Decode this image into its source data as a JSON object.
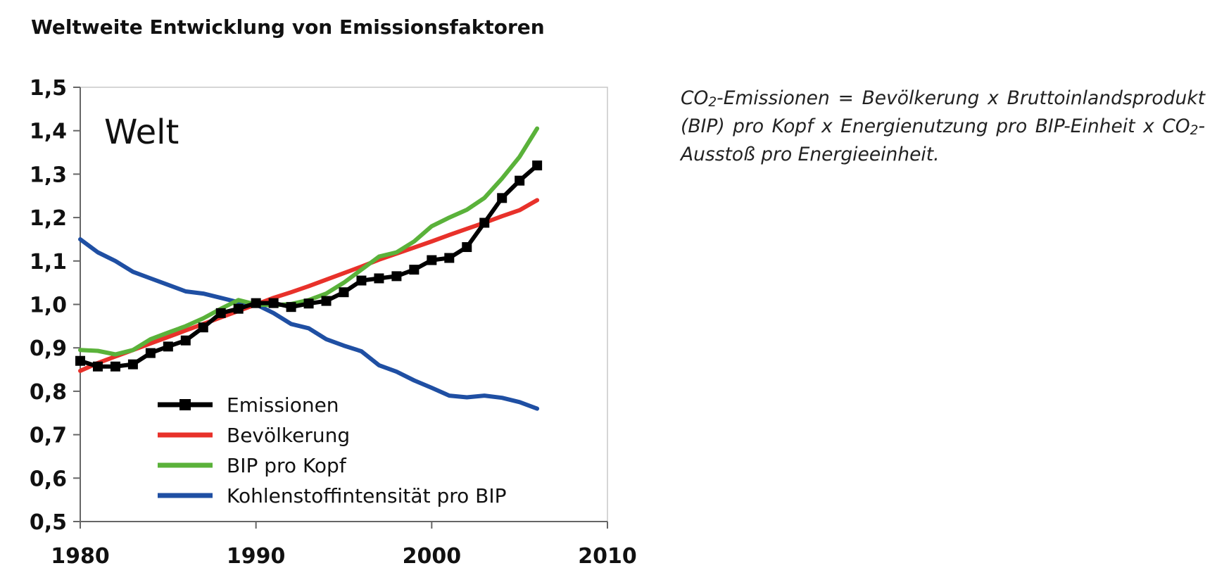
{
  "page": {
    "title": "Weltweite Entwicklung von Emissionsfaktoren"
  },
  "annotation": {
    "before_sub1": "CO",
    "sub1": "2",
    "after_sub1": "-Emissionen = Bevölkerung x Bruttoinlandsprodukt (BIP) pro Kopf x Energienutzung pro BIP-Einheit x CO",
    "sub2": "2",
    "after_sub2": "-Ausstoß pro Energieeinheit."
  },
  "chart_data": {
    "type": "line",
    "title": "Welt",
    "xlabel": "",
    "ylabel": "",
    "xlim": [
      1980,
      2010
    ],
    "ylim": [
      0.5,
      1.5
    ],
    "x_ticks": [
      "1980",
      "1990",
      "2000",
      "2010"
    ],
    "x_tick_values": [
      1980,
      1990,
      2000,
      2010
    ],
    "y_ticks": [
      "0,5",
      "0,6",
      "0,7",
      "0,8",
      "0,9",
      "1,0",
      "1,1",
      "1,2",
      "1,3",
      "1,4",
      "1,5"
    ],
    "y_tick_values": [
      0.5,
      0.6,
      0.7,
      0.8,
      0.9,
      1.0,
      1.1,
      1.2,
      1.3,
      1.4,
      1.5
    ],
    "grid": false,
    "legend_position": "bottom-left inside",
    "x": [
      1980,
      1981,
      1982,
      1983,
      1984,
      1985,
      1986,
      1987,
      1988,
      1989,
      1990,
      1991,
      1992,
      1993,
      1994,
      1995,
      1996,
      1997,
      1998,
      1999,
      2000,
      2001,
      2002,
      2003,
      2004,
      2005,
      2006
    ],
    "series": [
      {
        "name": "Emissionen",
        "color": "#000000",
        "markers": true,
        "values": [
          0.87,
          0.857,
          0.857,
          0.862,
          0.888,
          0.903,
          0.917,
          0.947,
          0.98,
          0.99,
          1.003,
          1.003,
          0.994,
          1.002,
          1.008,
          1.028,
          1.055,
          1.06,
          1.065,
          1.08,
          1.102,
          1.107,
          1.132,
          1.188,
          1.245,
          1.285,
          1.32
        ]
      },
      {
        "name": "Bevölkerung",
        "color": "#e8312a",
        "markers": false,
        "values": [
          0.847,
          0.865,
          0.88,
          0.895,
          0.91,
          0.925,
          0.94,
          0.955,
          0.97,
          0.985,
          1.0,
          1.015,
          1.028,
          1.042,
          1.057,
          1.072,
          1.087,
          1.103,
          1.117,
          1.131,
          1.145,
          1.16,
          1.174,
          1.188,
          1.203,
          1.217,
          1.24
        ]
      },
      {
        "name": "BIP pro Kopf",
        "color": "#5ab23a",
        "markers": false,
        "values": [
          0.895,
          0.893,
          0.885,
          0.895,
          0.92,
          0.935,
          0.95,
          0.968,
          0.99,
          1.01,
          1.0,
          0.998,
          1.001,
          1.01,
          1.025,
          1.05,
          1.08,
          1.11,
          1.12,
          1.145,
          1.18,
          1.2,
          1.218,
          1.245,
          1.29,
          1.34,
          1.405
        ]
      },
      {
        "name": "Kohlenstoffintensität pro BIP",
        "color": "#1f4fa3",
        "markers": false,
        "values": [
          1.15,
          1.12,
          1.1,
          1.075,
          1.06,
          1.045,
          1.03,
          1.025,
          1.015,
          1.005,
          1.0,
          0.98,
          0.955,
          0.945,
          0.92,
          0.905,
          0.892,
          0.86,
          0.845,
          0.825,
          0.808,
          0.79,
          0.786,
          0.79,
          0.785,
          0.775,
          0.76
        ]
      }
    ]
  }
}
